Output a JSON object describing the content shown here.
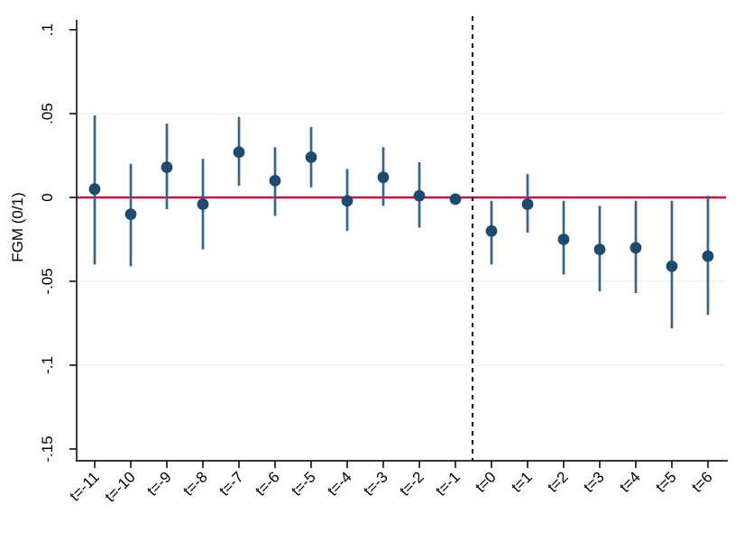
{
  "chart_data": {
    "type": "scatter",
    "subtype": "event-study-coefficient-plot",
    "title": "",
    "xlabel": "",
    "ylabel": "FGM (0/1)",
    "legend": "none",
    "grid": "horizontal-partial",
    "categories": [
      "t=-11",
      "t=-10",
      "t=-9",
      "t=-8",
      "t=-7",
      "t=-6",
      "t=-5",
      "t=-4",
      "t=-3",
      "t=-2",
      "t=-1",
      "t=0",
      "t=1",
      "t=2",
      "t=3",
      "t=4",
      "t=5",
      "t=6"
    ],
    "series": [
      {
        "name": "coefficient",
        "values": [
          0.005,
          -0.01,
          0.018,
          -0.004,
          0.027,
          0.01,
          0.024,
          -0.002,
          0.012,
          0.001,
          -0.001,
          -0.02,
          -0.004,
          -0.025,
          -0.031,
          -0.03,
          -0.041,
          -0.035
        ],
        "ci_low": [
          -0.04,
          -0.041,
          -0.007,
          -0.031,
          0.007,
          -0.011,
          0.006,
          -0.02,
          -0.005,
          -0.018,
          null,
          -0.04,
          -0.021,
          -0.046,
          -0.056,
          -0.057,
          -0.078,
          -0.07
        ],
        "ci_high": [
          0.049,
          0.02,
          0.044,
          0.023,
          0.048,
          0.03,
          0.042,
          0.017,
          0.03,
          0.021,
          null,
          -0.002,
          0.014,
          -0.002,
          -0.005,
          -0.002,
          -0.002,
          0.001
        ]
      }
    ],
    "reference_category": "t=-1",
    "yticks": [
      0.1,
      0.05,
      0,
      -0.05,
      -0.1,
      -0.15
    ],
    "ytick_labels": [
      ".1",
      ".05",
      "0",
      "-.05",
      "-.1",
      "-.15"
    ],
    "gridline_values": [
      0.05,
      -0.05,
      -0.1
    ],
    "ylim": [
      -0.157,
      0.106
    ],
    "zero_line_value": 0,
    "vline_between": [
      "t=-1",
      "t=0"
    ],
    "colors": {
      "marker": "#1d4a6e",
      "ci_line": "#36648b",
      "zero_line": "#b01b3f",
      "vline": "#000000",
      "gridline": "#e9f1f2",
      "axis": "#1a1a1a",
      "text": "#000000",
      "background": "#ffffff"
    }
  }
}
